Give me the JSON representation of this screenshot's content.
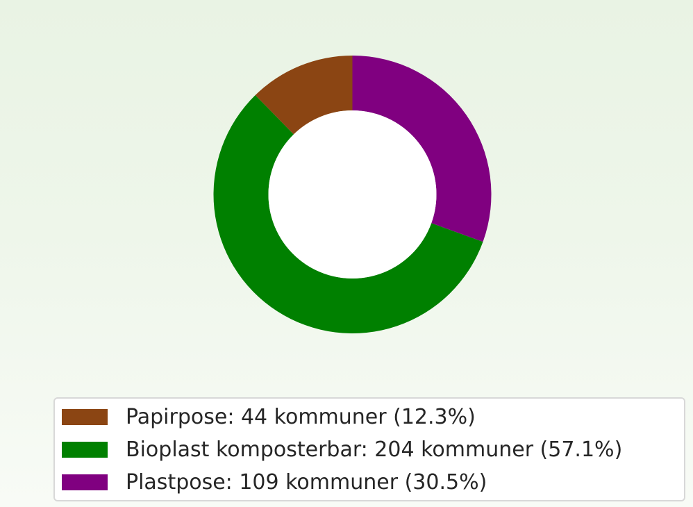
{
  "chart_data": {
    "type": "pie",
    "variant": "donut",
    "series": [
      {
        "name": "Papirpose",
        "value": 44,
        "percent": 12.3,
        "color": "#8b4513",
        "legend_label": "Papirpose: 44 kommuner (12.3%)"
      },
      {
        "name": "Bioplast komposterbar",
        "value": 204,
        "percent": 57.1,
        "color": "#008000",
        "legend_label": "Bioplast komposterbar: 204 kommuner (57.1%)"
      },
      {
        "name": "Plastpose",
        "value": 109,
        "percent": 30.5,
        "color": "#800080",
        "legend_label": "Plastpose: 109 kommuner (30.5%)"
      }
    ],
    "start_angle_deg": 90,
    "direction": "counterclockwise",
    "legend_position": "bottom"
  }
}
